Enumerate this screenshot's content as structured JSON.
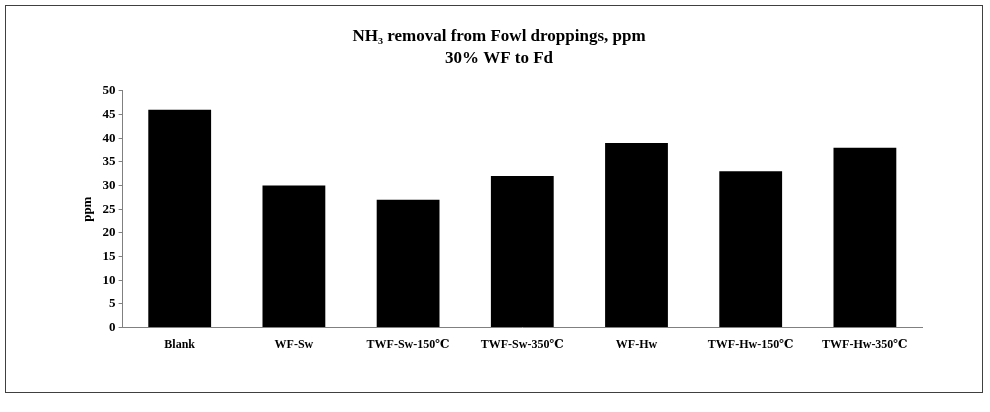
{
  "chart_data": {
    "type": "bar",
    "title": "NH₃ removal from Fowl droppings, ppm",
    "subtitle": "30% WF to Fd",
    "y_label": "ppm",
    "categories": [
      "Blank",
      "WF-Sw",
      "TWF-Sw-150℃",
      "TWF-Sw-350℃",
      "WF-Hw",
      "TWF-Hw-150℃",
      "TWF-Hw-350℃"
    ],
    "values": [
      46,
      30,
      27,
      32,
      39,
      33,
      38
    ],
    "color": "#000000",
    "ylim": [
      0,
      50
    ],
    "yticks": [
      0,
      5,
      10,
      15,
      20,
      25,
      30,
      35,
      40,
      45,
      50
    ],
    "grid": false
  }
}
